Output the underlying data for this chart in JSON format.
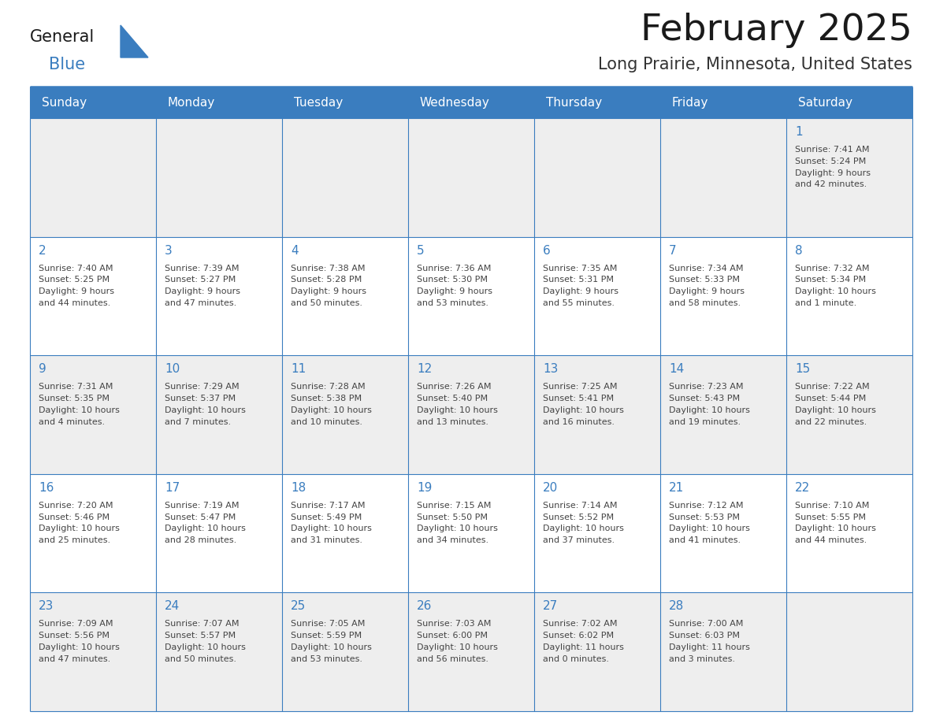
{
  "title": "February 2025",
  "subtitle": "Long Prairie, Minnesota, United States",
  "header_color": "#3a7dbf",
  "header_text_color": "#ffffff",
  "cell_bg_odd": "#eeeeee",
  "cell_bg_even": "#ffffff",
  "day_names": [
    "Sunday",
    "Monday",
    "Tuesday",
    "Wednesday",
    "Thursday",
    "Friday",
    "Saturday"
  ],
  "days": [
    {
      "day": 1,
      "row": 0,
      "col": 6,
      "sunrise": "7:41 AM",
      "sunset": "5:24 PM",
      "daylight": "9 hours and 42 minutes."
    },
    {
      "day": 2,
      "row": 1,
      "col": 0,
      "sunrise": "7:40 AM",
      "sunset": "5:25 PM",
      "daylight": "9 hours and 44 minutes."
    },
    {
      "day": 3,
      "row": 1,
      "col": 1,
      "sunrise": "7:39 AM",
      "sunset": "5:27 PM",
      "daylight": "9 hours and 47 minutes."
    },
    {
      "day": 4,
      "row": 1,
      "col": 2,
      "sunrise": "7:38 AM",
      "sunset": "5:28 PM",
      "daylight": "9 hours and 50 minutes."
    },
    {
      "day": 5,
      "row": 1,
      "col": 3,
      "sunrise": "7:36 AM",
      "sunset": "5:30 PM",
      "daylight": "9 hours and 53 minutes."
    },
    {
      "day": 6,
      "row": 1,
      "col": 4,
      "sunrise": "7:35 AM",
      "sunset": "5:31 PM",
      "daylight": "9 hours and 55 minutes."
    },
    {
      "day": 7,
      "row": 1,
      "col": 5,
      "sunrise": "7:34 AM",
      "sunset": "5:33 PM",
      "daylight": "9 hours and 58 minutes."
    },
    {
      "day": 8,
      "row": 1,
      "col": 6,
      "sunrise": "7:32 AM",
      "sunset": "5:34 PM",
      "daylight": "10 hours and 1 minute."
    },
    {
      "day": 9,
      "row": 2,
      "col": 0,
      "sunrise": "7:31 AM",
      "sunset": "5:35 PM",
      "daylight": "10 hours and 4 minutes."
    },
    {
      "day": 10,
      "row": 2,
      "col": 1,
      "sunrise": "7:29 AM",
      "sunset": "5:37 PM",
      "daylight": "10 hours and 7 minutes."
    },
    {
      "day": 11,
      "row": 2,
      "col": 2,
      "sunrise": "7:28 AM",
      "sunset": "5:38 PM",
      "daylight": "10 hours and 10 minutes."
    },
    {
      "day": 12,
      "row": 2,
      "col": 3,
      "sunrise": "7:26 AM",
      "sunset": "5:40 PM",
      "daylight": "10 hours and 13 minutes."
    },
    {
      "day": 13,
      "row": 2,
      "col": 4,
      "sunrise": "7:25 AM",
      "sunset": "5:41 PM",
      "daylight": "10 hours and 16 minutes."
    },
    {
      "day": 14,
      "row": 2,
      "col": 5,
      "sunrise": "7:23 AM",
      "sunset": "5:43 PM",
      "daylight": "10 hours and 19 minutes."
    },
    {
      "day": 15,
      "row": 2,
      "col": 6,
      "sunrise": "7:22 AM",
      "sunset": "5:44 PM",
      "daylight": "10 hours and 22 minutes."
    },
    {
      "day": 16,
      "row": 3,
      "col": 0,
      "sunrise": "7:20 AM",
      "sunset": "5:46 PM",
      "daylight": "10 hours and 25 minutes."
    },
    {
      "day": 17,
      "row": 3,
      "col": 1,
      "sunrise": "7:19 AM",
      "sunset": "5:47 PM",
      "daylight": "10 hours and 28 minutes."
    },
    {
      "day": 18,
      "row": 3,
      "col": 2,
      "sunrise": "7:17 AM",
      "sunset": "5:49 PM",
      "daylight": "10 hours and 31 minutes."
    },
    {
      "day": 19,
      "row": 3,
      "col": 3,
      "sunrise": "7:15 AM",
      "sunset": "5:50 PM",
      "daylight": "10 hours and 34 minutes."
    },
    {
      "day": 20,
      "row": 3,
      "col": 4,
      "sunrise": "7:14 AM",
      "sunset": "5:52 PM",
      "daylight": "10 hours and 37 minutes."
    },
    {
      "day": 21,
      "row": 3,
      "col": 5,
      "sunrise": "7:12 AM",
      "sunset": "5:53 PM",
      "daylight": "10 hours and 41 minutes."
    },
    {
      "day": 22,
      "row": 3,
      "col": 6,
      "sunrise": "7:10 AM",
      "sunset": "5:55 PM",
      "daylight": "10 hours and 44 minutes."
    },
    {
      "day": 23,
      "row": 4,
      "col": 0,
      "sunrise": "7:09 AM",
      "sunset": "5:56 PM",
      "daylight": "10 hours and 47 minutes."
    },
    {
      "day": 24,
      "row": 4,
      "col": 1,
      "sunrise": "7:07 AM",
      "sunset": "5:57 PM",
      "daylight": "10 hours and 50 minutes."
    },
    {
      "day": 25,
      "row": 4,
      "col": 2,
      "sunrise": "7:05 AM",
      "sunset": "5:59 PM",
      "daylight": "10 hours and 53 minutes."
    },
    {
      "day": 26,
      "row": 4,
      "col": 3,
      "sunrise": "7:03 AM",
      "sunset": "6:00 PM",
      "daylight": "10 hours and 56 minutes."
    },
    {
      "day": 27,
      "row": 4,
      "col": 4,
      "sunrise": "7:02 AM",
      "sunset": "6:02 PM",
      "daylight": "11 hours and 0 minutes."
    },
    {
      "day": 28,
      "row": 4,
      "col": 5,
      "sunrise": "7:00 AM",
      "sunset": "6:03 PM",
      "daylight": "11 hours and 3 minutes."
    }
  ],
  "num_rows": 5,
  "num_cols": 7,
  "logo_general_color": "#1a1a1a",
  "logo_blue_color": "#3a7dbf",
  "border_color": "#3a7dbf",
  "text_color": "#444444",
  "day_num_color": "#3a7dbf",
  "info_fontsize": 8.0,
  "day_num_fontsize": 11,
  "header_fontsize": 11
}
